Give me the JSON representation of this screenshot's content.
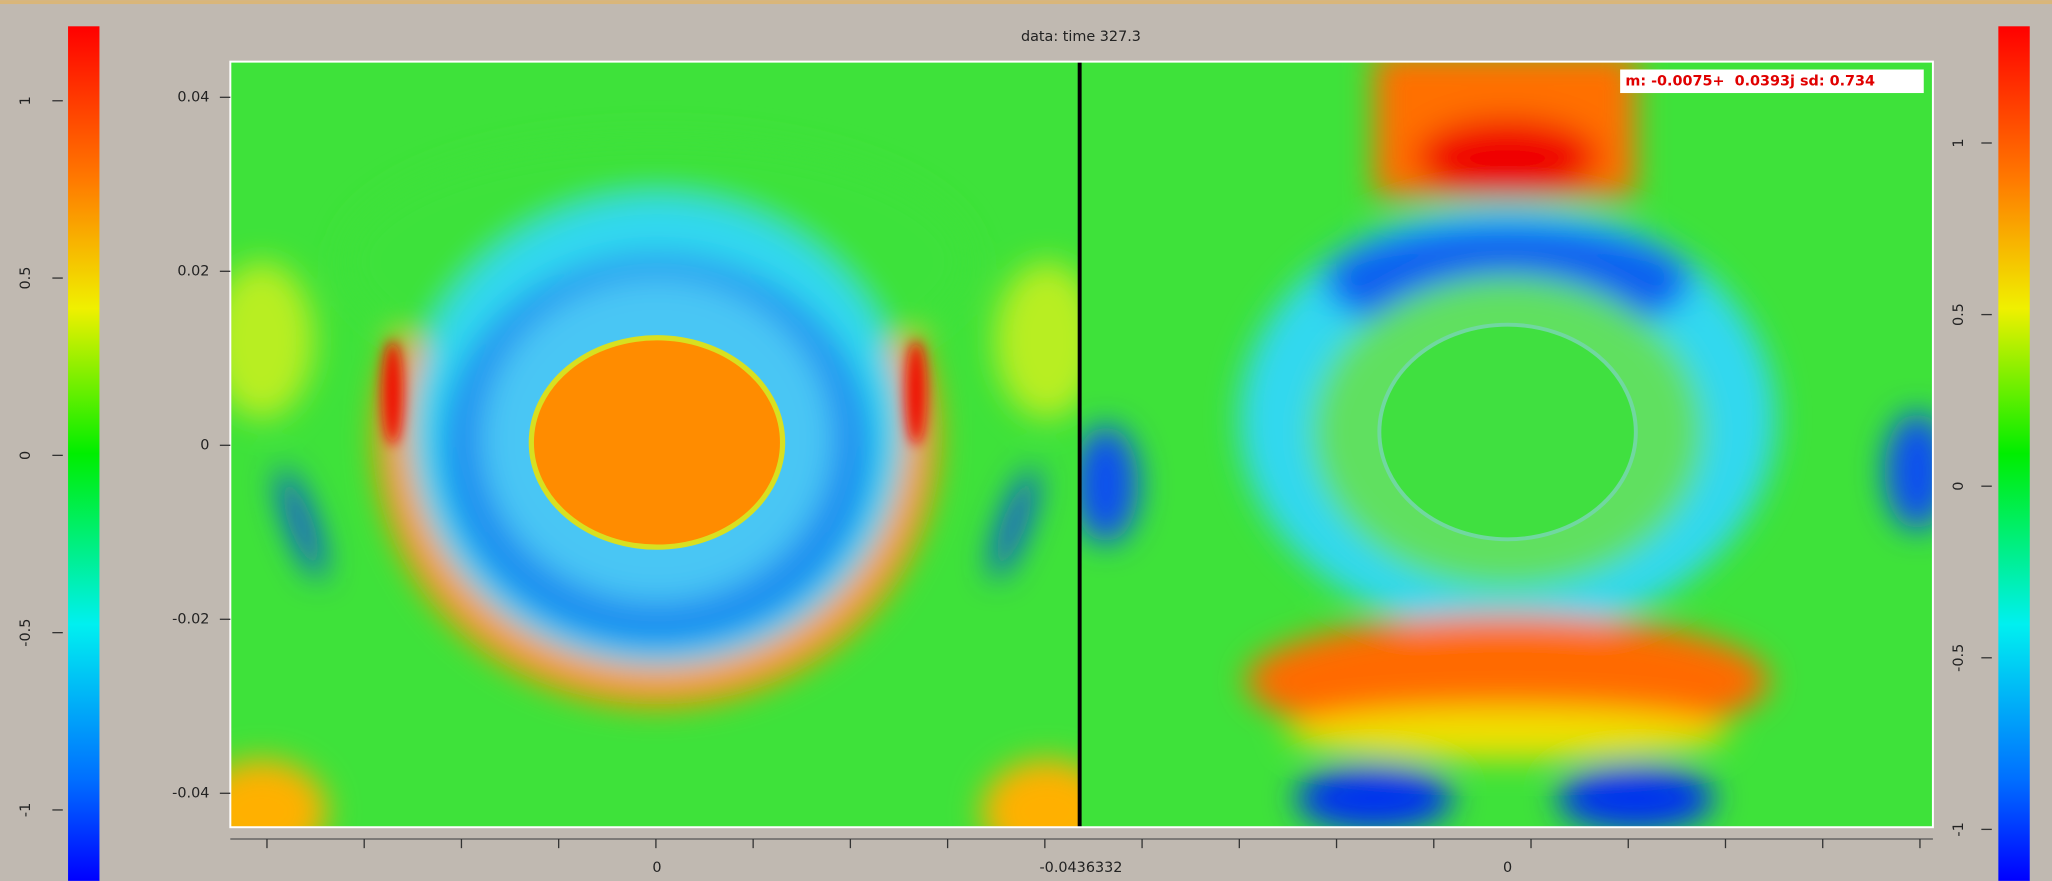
{
  "title": "data: time 327.3",
  "annotation": "m: -0.0075+  0.0393j sd: 0.734",
  "left_colorbar": {
    "lim": [
      -1.2,
      1.21
    ],
    "ticks": [
      -1,
      -0.5,
      0,
      0.5,
      1
    ]
  },
  "right_colorbar": {
    "lim": [
      -1.15,
      1.34
    ],
    "ticks": [
      -1,
      -0.5,
      0,
      0.5,
      1
    ]
  },
  "y_axis": {
    "lim": [
      -0.0439,
      0.0441
    ],
    "ticks": [
      -0.04,
      -0.02,
      0,
      0.02,
      0.04
    ]
  },
  "x_axis": {
    "labels": [
      "0",
      "-0.0436332",
      "0"
    ]
  }
}
